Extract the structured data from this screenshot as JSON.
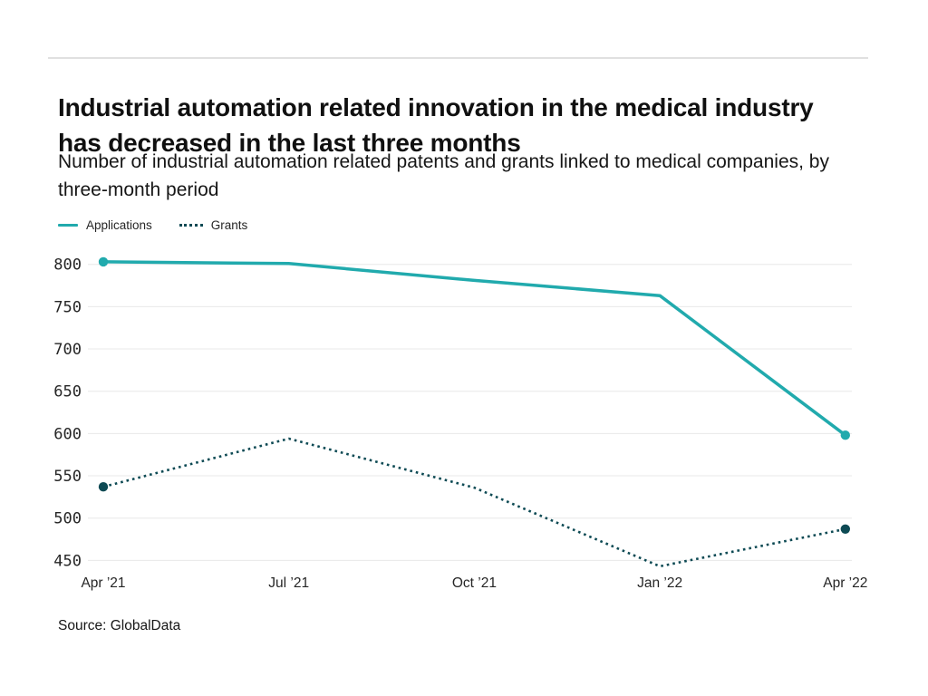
{
  "page": {
    "title": "Industrial automation related innovation in the medical industry has decreased in the last three months",
    "subtitle": "Number of industrial automation related patents and grants linked to medical companies, by three-month period",
    "source": "Source: GlobalData"
  },
  "legend": {
    "items": [
      {
        "label": "Applications",
        "style": "solid",
        "color": "#21aaad"
      },
      {
        "label": "Grants",
        "style": "dotted",
        "color": "#0d4a54"
      }
    ]
  },
  "chart_data": {
    "type": "line",
    "categories": [
      "Apr ’21",
      "Jul ’21",
      "Oct ’21",
      "Jan ’22",
      "Apr ’22"
    ],
    "series": [
      {
        "name": "Applications",
        "values": [
          803,
          801,
          781,
          763,
          598
        ],
        "color": "#21aaad",
        "line_style": "solid",
        "markers": "first-last"
      },
      {
        "name": "Grants",
        "values": [
          537,
          594,
          536,
          443,
          487
        ],
        "color": "#0d4a54",
        "line_style": "dotted",
        "markers": "first-last"
      }
    ],
    "title": "Industrial automation related innovation in the medical industry has decreased in the last three months",
    "xlabel": "",
    "ylabel": "",
    "ylim": [
      430,
      815
    ],
    "yticks": [
      450,
      500,
      550,
      600,
      650,
      700,
      750,
      800
    ],
    "grid": "horizontal",
    "legend_position": "top-left"
  }
}
